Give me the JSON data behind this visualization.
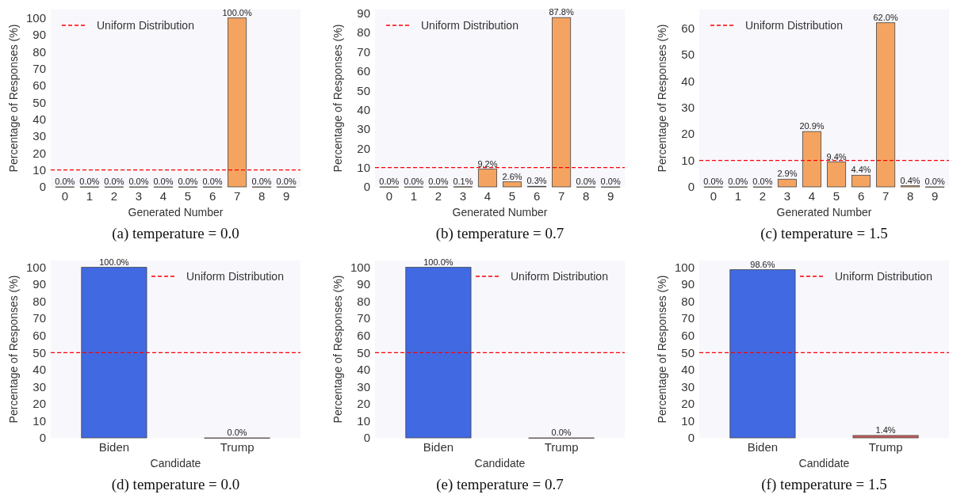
{
  "chart_data": [
    {
      "type": "bar",
      "categories": [
        "0",
        "1",
        "2",
        "3",
        "4",
        "5",
        "6",
        "7",
        "8",
        "9"
      ],
      "values": [
        0,
        0,
        0,
        0,
        0,
        0,
        0,
        100,
        0,
        0
      ],
      "value_labels": [
        "0.0%",
        "0.0%",
        "0.0%",
        "0.0%",
        "0.0%",
        "0.0%",
        "0.0%",
        "100.0%",
        "0.0%",
        "0.0%"
      ],
      "color": "#f4a460",
      "xlabel": "Generated Number",
      "ylabel": "Percentage of Responses (%)",
      "ylim": [
        0,
        105
      ],
      "yticks": [
        0,
        10,
        20,
        30,
        40,
        50,
        60,
        70,
        80,
        90,
        100
      ],
      "ref_lines": [
        {
          "axis": "y",
          "value": 10,
          "label": "Uniform Distribution",
          "color": "#ff0000",
          "line_style": "dashed"
        }
      ],
      "legend": "top left",
      "annotations": [
        "(a) temperature = 0.0"
      ]
    },
    {
      "type": "bar",
      "categories": [
        "0",
        "1",
        "2",
        "3",
        "4",
        "5",
        "6",
        "7",
        "8",
        "9"
      ],
      "values": [
        0,
        0,
        0,
        0.1,
        9.2,
        2.6,
        0.3,
        87.8,
        0,
        0
      ],
      "value_labels": [
        "0.0%",
        "0.0%",
        "0.0%",
        "0.1%",
        "9.2%",
        "2.6%",
        "0.3%",
        "87.8%",
        "0.0%",
        "0.0%"
      ],
      "color": "#f4a460",
      "xlabel": "Generated Number",
      "ylabel": "Percentage of Responses (%)",
      "ylim": [
        0,
        92
      ],
      "yticks": [
        0,
        10,
        20,
        30,
        40,
        50,
        60,
        70,
        80,
        90
      ],
      "ref_lines": [
        {
          "axis": "y",
          "value": 10,
          "label": "Uniform Distribution",
          "color": "#ff0000",
          "line_style": "dashed"
        }
      ],
      "legend": "top left",
      "annotations": [
        "(b) temperature = 0.7"
      ]
    },
    {
      "type": "bar",
      "categories": [
        "0",
        "1",
        "2",
        "3",
        "4",
        "5",
        "6",
        "7",
        "8",
        "9"
      ],
      "values": [
        0,
        0,
        0,
        2.9,
        20.9,
        9.4,
        4.4,
        62.0,
        0.4,
        0
      ],
      "value_labels": [
        "0.0%",
        "0.0%",
        "0.0%",
        "2.9%",
        "20.9%",
        "9.4%",
        "4.4%",
        "62.0%",
        "0.4%",
        "0.0%"
      ],
      "color": "#f4a460",
      "xlabel": "Generated Number",
      "ylabel": "Percentage of Responses (%)",
      "ylim": [
        0,
        67
      ],
      "yticks": [
        0,
        10,
        20,
        30,
        40,
        50,
        60
      ],
      "ref_lines": [
        {
          "axis": "y",
          "value": 10,
          "label": "Uniform Distribution",
          "color": "#ff0000",
          "line_style": "dashed"
        }
      ],
      "legend": "top left",
      "annotations": [
        "(c) temperature = 1.5"
      ]
    },
    {
      "type": "bar",
      "categories": [
        "Biden",
        "Trump"
      ],
      "values": [
        100,
        0
      ],
      "value_labels": [
        "100.0%",
        "0.0%"
      ],
      "colors": [
        "#4169e1",
        "#cd5c5c"
      ],
      "xlabel": "Candidate",
      "ylabel": "Percentage of Responses (%)",
      "ylim": [
        0,
        104
      ],
      "yticks": [
        0,
        10,
        20,
        30,
        40,
        50,
        60,
        70,
        80,
        90,
        100
      ],
      "ref_lines": [
        {
          "axis": "y",
          "value": 50,
          "label": "Uniform Distribution",
          "color": "#ff0000",
          "line_style": "dashed"
        }
      ],
      "legend": "top right",
      "annotations": [
        "(d) temperature = 0.0"
      ]
    },
    {
      "type": "bar",
      "categories": [
        "Biden",
        "Trump"
      ],
      "values": [
        100,
        0
      ],
      "value_labels": [
        "100.0%",
        "0.0%"
      ],
      "colors": [
        "#4169e1",
        "#cd5c5c"
      ],
      "xlabel": "Candidate",
      "ylabel": "Percentage of Responses (%)",
      "ylim": [
        0,
        104
      ],
      "yticks": [
        0,
        10,
        20,
        30,
        40,
        50,
        60,
        70,
        80,
        90,
        100
      ],
      "ref_lines": [
        {
          "axis": "y",
          "value": 50,
          "label": "Uniform Distribution",
          "color": "#ff0000",
          "line_style": "dashed"
        }
      ],
      "legend": "top right",
      "annotations": [
        "(e) temperature = 0.7"
      ]
    },
    {
      "type": "bar",
      "categories": [
        "Biden",
        "Trump"
      ],
      "values": [
        98.6,
        1.4
      ],
      "value_labels": [
        "98.6%",
        "1.4%"
      ],
      "colors": [
        "#4169e1",
        "#cd5c5c"
      ],
      "xlabel": "Candidate",
      "ylabel": "Percentage of Responses (%)",
      "ylim": [
        0,
        104
      ],
      "yticks": [
        0,
        10,
        20,
        30,
        40,
        50,
        60,
        70,
        80,
        90,
        100
      ],
      "ref_lines": [
        {
          "axis": "y",
          "value": 50,
          "label": "Uniform Distribution",
          "color": "#ff0000",
          "line_style": "dashed"
        }
      ],
      "legend": "top right",
      "annotations": [
        "(f) temperature = 1.5"
      ]
    }
  ]
}
